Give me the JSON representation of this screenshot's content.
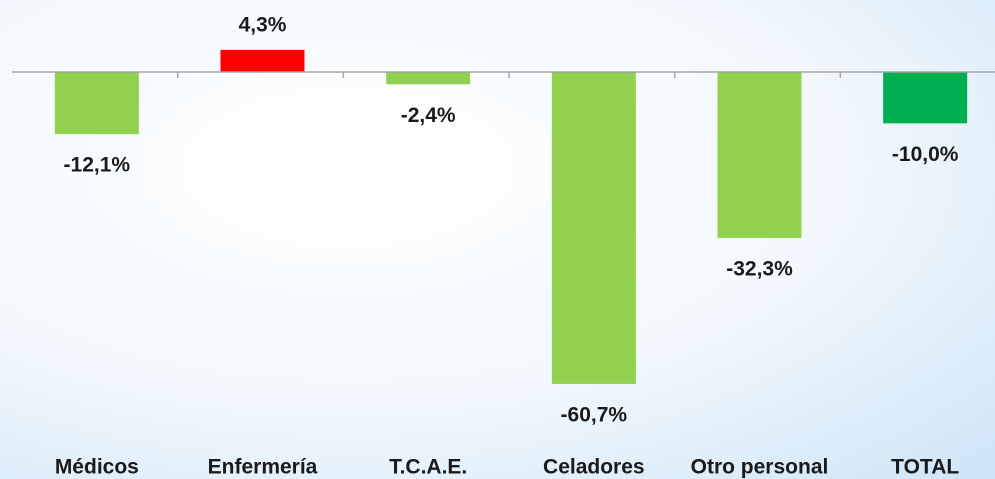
{
  "chart_data": {
    "type": "bar",
    "categories": [
      "Médicos",
      "Enfermería",
      "T.C.A.E.",
      "Celadores",
      "Otro personal",
      "TOTAL"
    ],
    "values": [
      -12.1,
      4.3,
      -2.4,
      -60.7,
      -32.3,
      -10.0
    ],
    "value_labels": [
      "-12,1%",
      "4,3%",
      "-2,4%",
      "-60,7%",
      "-32,3%",
      "-10,0%"
    ],
    "colors": [
      "#92d050",
      "#ff0000",
      "#92d050",
      "#92d050",
      "#92d050",
      "#00b050"
    ],
    "ylim": [
      -79.2,
      14
    ]
  }
}
